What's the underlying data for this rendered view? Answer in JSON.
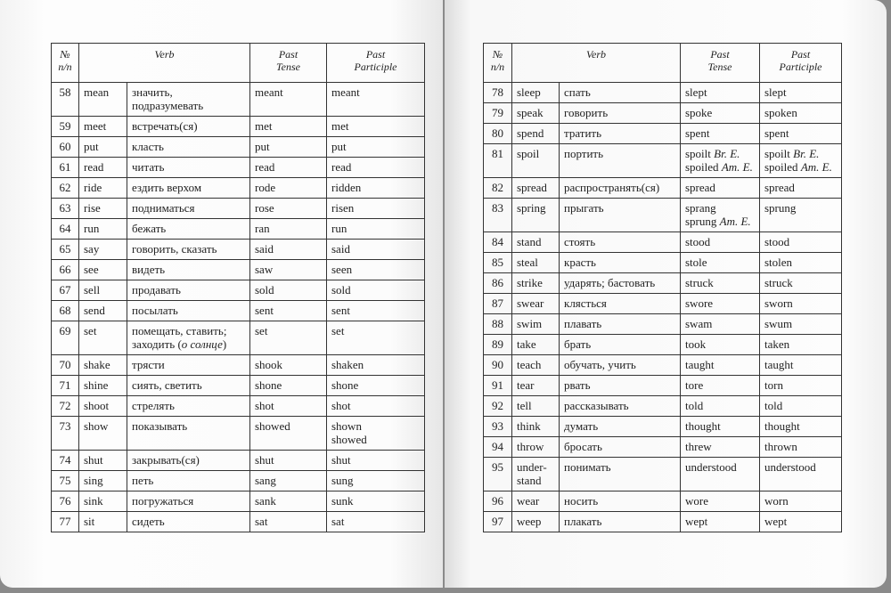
{
  "header": {
    "num": "№\nn/n",
    "verb": "Verb",
    "past": "Past\nTense",
    "participle": "Past\nParticiple"
  },
  "left_rows": [
    [
      "58",
      "mean",
      "значить,\nподразумевать",
      "meant",
      "meant"
    ],
    [
      "59",
      "meet",
      "встречать(ся)",
      "met",
      "met"
    ],
    [
      "60",
      "put",
      "класть",
      "put",
      "put"
    ],
    [
      "61",
      "read",
      "читать",
      "read",
      "read"
    ],
    [
      "62",
      "ride",
      "ездить верхом",
      "rode",
      "ridden"
    ],
    [
      "63",
      "rise",
      "подниматься",
      "rose",
      "risen"
    ],
    [
      "64",
      "run",
      "бежать",
      "ran",
      "run"
    ],
    [
      "65",
      "say",
      "говорить, сказать",
      "said",
      "said"
    ],
    [
      "66",
      "see",
      "видеть",
      "saw",
      "seen"
    ],
    [
      "67",
      "sell",
      "продавать",
      "sold",
      "sold"
    ],
    [
      "68",
      "send",
      "посылать",
      "sent",
      "sent"
    ],
    [
      "69",
      "set",
      "помещать, ставить;\nзаходить (о солнце)",
      "set",
      "set"
    ],
    [
      "70",
      "shake",
      "трясти",
      "shook",
      "shaken"
    ],
    [
      "71",
      "shine",
      "сиять, светить",
      "shone",
      "shone"
    ],
    [
      "72",
      "shoot",
      "стрелять",
      "shot",
      "shot"
    ],
    [
      "73",
      "show",
      "показывать",
      "showed",
      "shown\nshowed"
    ],
    [
      "74",
      "shut",
      "закрывать(ся)",
      "shut",
      "shut"
    ],
    [
      "75",
      "sing",
      "петь",
      "sang",
      "sung"
    ],
    [
      "76",
      "sink",
      "погружаться",
      "sank",
      "sunk"
    ],
    [
      "77",
      "sit",
      "сидеть",
      "sat",
      "sat"
    ]
  ],
  "right_rows": [
    [
      "78",
      "sleep",
      "спать",
      "slept",
      "slept"
    ],
    [
      "79",
      "speak",
      "говорить",
      "spoke",
      "spoken"
    ],
    [
      "80",
      "spend",
      "тратить",
      "spent",
      "spent"
    ],
    [
      "81",
      "spoil",
      "портить",
      "spoilt Br. E.\nspoiled Am. E.",
      "spoilt Br. E.\nspoiled Am. E."
    ],
    [
      "82",
      "spread",
      "распространять(ся)",
      "spread",
      "spread"
    ],
    [
      "83",
      "spring",
      "прыгать",
      "sprang\nsprung Am. E.",
      "sprung"
    ],
    [
      "84",
      "stand",
      "стоять",
      "stood",
      "stood"
    ],
    [
      "85",
      "steal",
      "красть",
      "stole",
      "stolen"
    ],
    [
      "86",
      "strike",
      "ударять; бастовать",
      "struck",
      "struck"
    ],
    [
      "87",
      "swear",
      "клясться",
      "swore",
      "sworn"
    ],
    [
      "88",
      "swim",
      "плавать",
      "swam",
      "swum"
    ],
    [
      "89",
      "take",
      "брать",
      "took",
      "taken"
    ],
    [
      "90",
      "teach",
      "обучать, учить",
      "taught",
      "taught"
    ],
    [
      "91",
      "tear",
      "рвать",
      "tore",
      "torn"
    ],
    [
      "92",
      "tell",
      "рассказывать",
      "told",
      "told"
    ],
    [
      "93",
      "think",
      "думать",
      "thought",
      "thought"
    ],
    [
      "94",
      "throw",
      "бросать",
      "threw",
      "thrown"
    ],
    [
      "95",
      "under-\nstand",
      "понимать",
      "understood",
      "understood"
    ],
    [
      "96",
      "wear",
      "носить",
      "wore",
      "worn"
    ],
    [
      "97",
      "weep",
      "плакать",
      "wept",
      "wept"
    ]
  ]
}
